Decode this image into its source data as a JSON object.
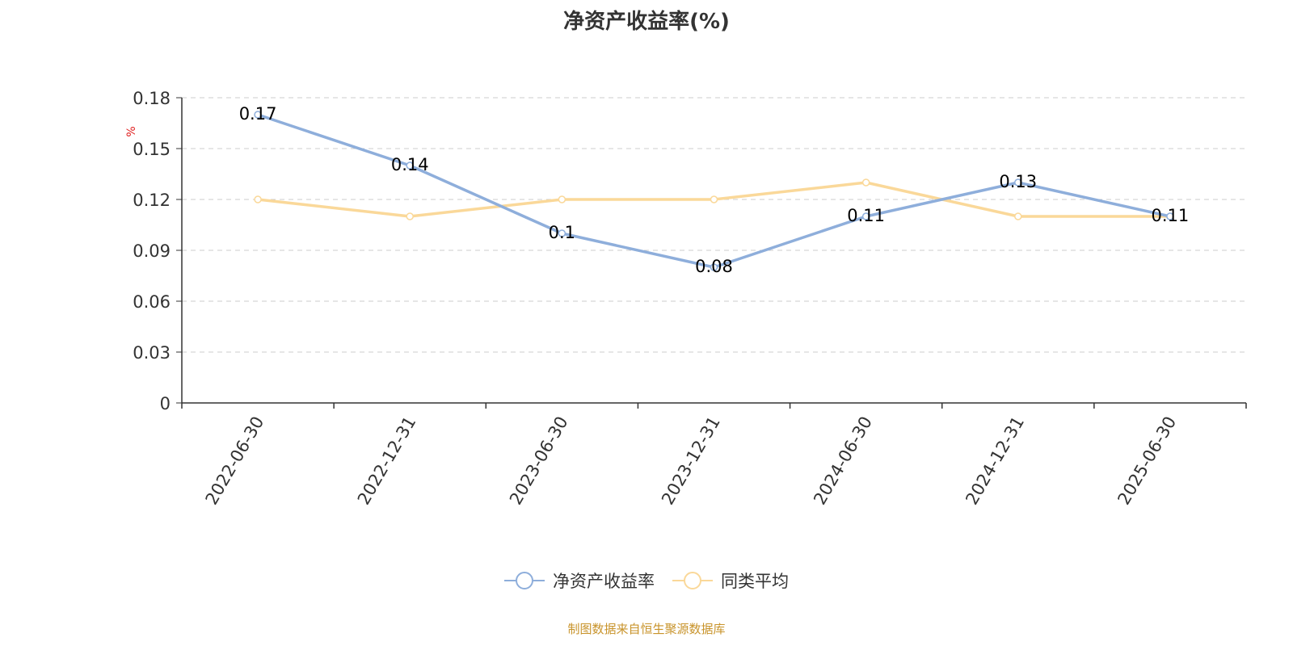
{
  "chart_data": {
    "type": "line",
    "title": "净资产收益率(%)",
    "ylabel": "%",
    "xlabel": "",
    "categories": [
      "2022-06-30",
      "2022-12-31",
      "2023-06-30",
      "2023-12-31",
      "2024-06-30",
      "2024-12-31",
      "2025-06-30"
    ],
    "ylim": [
      0,
      0.18
    ],
    "yticks": [
      0,
      0.03,
      0.06,
      0.09,
      0.12,
      0.15,
      0.18
    ],
    "ytick_labels": [
      "0",
      "0.03",
      "0.06",
      "0.09",
      "0.12",
      "0.15",
      "0.18"
    ],
    "grid": true,
    "legend_position": "bottom-center",
    "series": [
      {
        "name": "净资产收益率",
        "color": "#8eaedb",
        "values": [
          0.17,
          0.14,
          0.1,
          0.08,
          0.11,
          0.13,
          0.11
        ],
        "labels": [
          "0.17",
          "0.14",
          "0.1",
          "0.08",
          "0.11",
          "0.13",
          "0.11"
        ]
      },
      {
        "name": "同类平均",
        "color": "#fad899",
        "values": [
          0.12,
          0.11,
          0.12,
          0.12,
          0.13,
          0.11,
          0.11
        ]
      }
    ]
  },
  "colors": {
    "ylabel": "#e01f1f",
    "footer": "#c8932a",
    "axis": "#333333",
    "grid": "#cccccc"
  },
  "footer": "制图数据来自恒生聚源数据库"
}
